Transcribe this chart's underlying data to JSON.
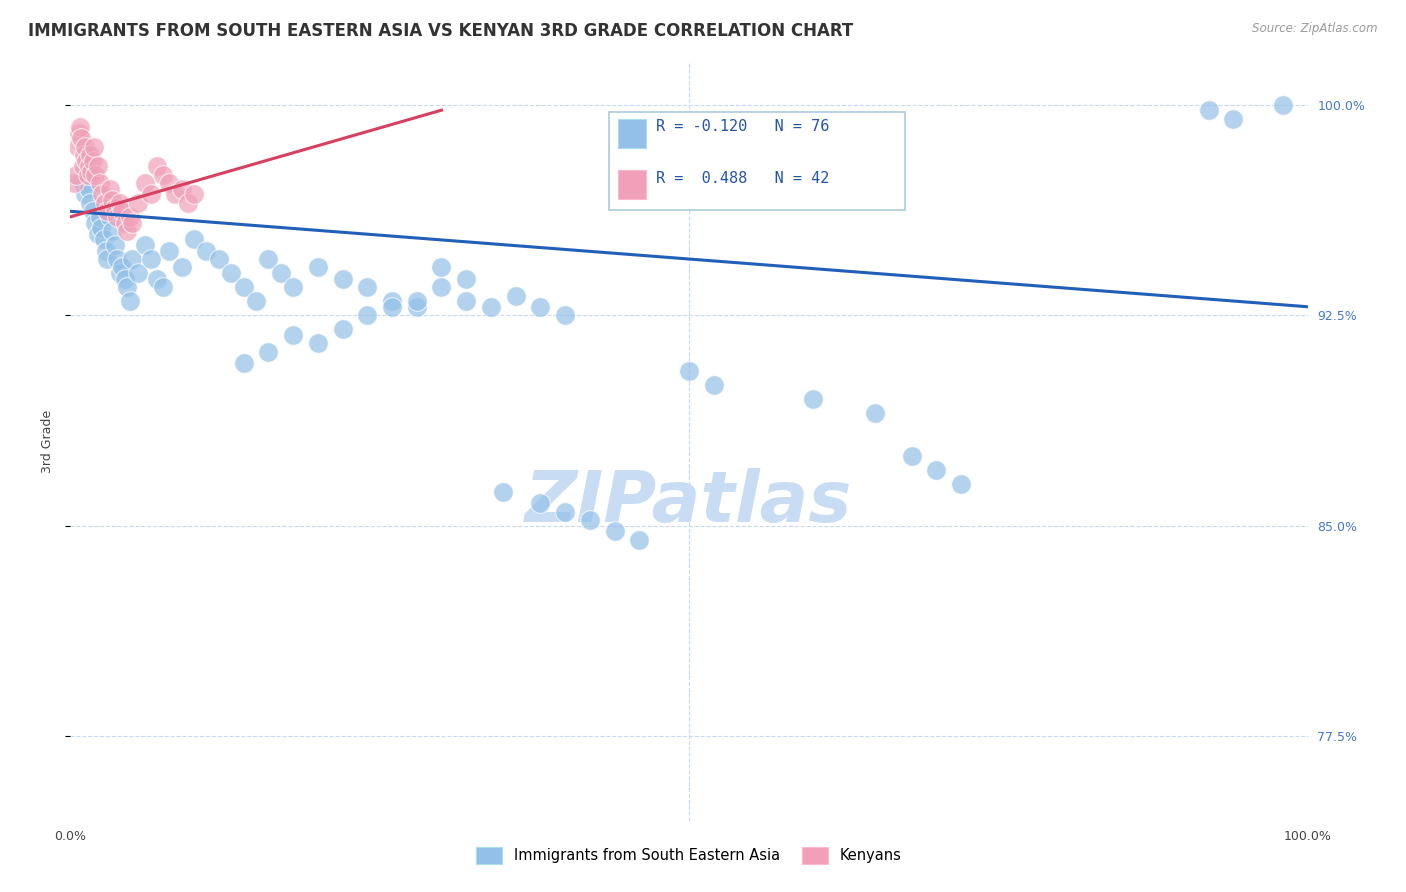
{
  "title": "IMMIGRANTS FROM SOUTH EASTERN ASIA VS KENYAN 3RD GRADE CORRELATION CHART",
  "source": "Source: ZipAtlas.com",
  "ylabel": "3rd Grade",
  "xlim": [
    0.0,
    1.0
  ],
  "ylim": [
    0.745,
    1.015
  ],
  "ytick_vals": [
    0.775,
    0.85,
    0.925,
    1.0
  ],
  "ytick_labels": [
    "77.5%",
    "85.0%",
    "92.5%",
    "100.0%"
  ],
  "xtick_vals": [
    0.0,
    0.25,
    0.5,
    0.75,
    1.0
  ],
  "xtick_labels": [
    "0.0%",
    "",
    "",
    "",
    "100.0%"
  ],
  "blue_scatter_x": [
    0.01,
    0.012,
    0.013,
    0.015,
    0.016,
    0.018,
    0.02,
    0.022,
    0.024,
    0.025,
    0.027,
    0.029,
    0.03,
    0.032,
    0.034,
    0.036,
    0.038,
    0.04,
    0.042,
    0.044,
    0.046,
    0.048,
    0.05,
    0.055,
    0.06,
    0.065,
    0.07,
    0.075,
    0.08,
    0.09,
    0.1,
    0.11,
    0.12,
    0.13,
    0.14,
    0.15,
    0.16,
    0.17,
    0.18,
    0.2,
    0.22,
    0.24,
    0.26,
    0.28,
    0.3,
    0.32,
    0.34,
    0.36,
    0.38,
    0.4,
    0.3,
    0.32,
    0.28,
    0.26,
    0.24,
    0.22,
    0.2,
    0.18,
    0.16,
    0.14,
    0.5,
    0.52,
    0.6,
    0.65,
    0.68,
    0.7,
    0.72,
    0.92,
    0.94,
    0.98,
    0.35,
    0.38,
    0.4,
    0.42,
    0.44,
    0.46
  ],
  "blue_scatter_y": [
    0.972,
    0.968,
    0.975,
    0.97,
    0.965,
    0.962,
    0.958,
    0.954,
    0.96,
    0.956,
    0.952,
    0.948,
    0.945,
    0.96,
    0.955,
    0.95,
    0.945,
    0.94,
    0.942,
    0.938,
    0.935,
    0.93,
    0.945,
    0.94,
    0.95,
    0.945,
    0.938,
    0.935,
    0.948,
    0.942,
    0.952,
    0.948,
    0.945,
    0.94,
    0.935,
    0.93,
    0.945,
    0.94,
    0.935,
    0.942,
    0.938,
    0.935,
    0.93,
    0.928,
    0.935,
    0.93,
    0.928,
    0.932,
    0.928,
    0.925,
    0.942,
    0.938,
    0.93,
    0.928,
    0.925,
    0.92,
    0.915,
    0.918,
    0.912,
    0.908,
    0.905,
    0.9,
    0.895,
    0.89,
    0.875,
    0.87,
    0.865,
    0.998,
    0.995,
    1.0,
    0.862,
    0.858,
    0.855,
    0.852,
    0.848,
    0.845
  ],
  "pink_scatter_x": [
    0.003,
    0.005,
    0.006,
    0.007,
    0.008,
    0.009,
    0.01,
    0.011,
    0.012,
    0.013,
    0.014,
    0.015,
    0.016,
    0.017,
    0.018,
    0.019,
    0.02,
    0.022,
    0.024,
    0.026,
    0.028,
    0.03,
    0.032,
    0.034,
    0.036,
    0.038,
    0.04,
    0.042,
    0.044,
    0.046,
    0.048,
    0.05,
    0.055,
    0.06,
    0.065,
    0.07,
    0.075,
    0.08,
    0.085,
    0.09,
    0.095,
    0.1
  ],
  "pink_scatter_y": [
    0.972,
    0.975,
    0.985,
    0.99,
    0.992,
    0.988,
    0.978,
    0.982,
    0.985,
    0.98,
    0.975,
    0.978,
    0.982,
    0.976,
    0.98,
    0.985,
    0.975,
    0.978,
    0.972,
    0.968,
    0.965,
    0.962,
    0.97,
    0.966,
    0.963,
    0.96,
    0.965,
    0.962,
    0.958,
    0.955,
    0.96,
    0.958,
    0.965,
    0.972,
    0.968,
    0.978,
    0.975,
    0.972,
    0.968,
    0.97,
    0.965,
    0.968
  ],
  "blue_line_x": [
    0.0,
    1.0
  ],
  "blue_line_y": [
    0.962,
    0.928
  ],
  "pink_line_x": [
    0.0,
    0.3
  ],
  "pink_line_y": [
    0.96,
    0.998
  ],
  "blue_color": "#92c0e8",
  "pink_color": "#f0a0b8",
  "blue_line_color": "#2060b8",
  "pink_line_color": "#d84060",
  "grid_color": "#c8d8f0",
  "watermark_color": "#c8ddf4",
  "legend_R_blue": "R = -0.120",
  "legend_N_blue": "N = 76",
  "legend_R_pink": "R =  0.488",
  "legend_N_pink": "N = 42",
  "legend_label_blue": "Immigrants from South Eastern Asia",
  "legend_label_pink": "Kenyans",
  "marker_size": 200,
  "title_fontsize": 12,
  "axis_label_fontsize": 9,
  "tick_fontsize": 9,
  "legend_fontsize": 11
}
